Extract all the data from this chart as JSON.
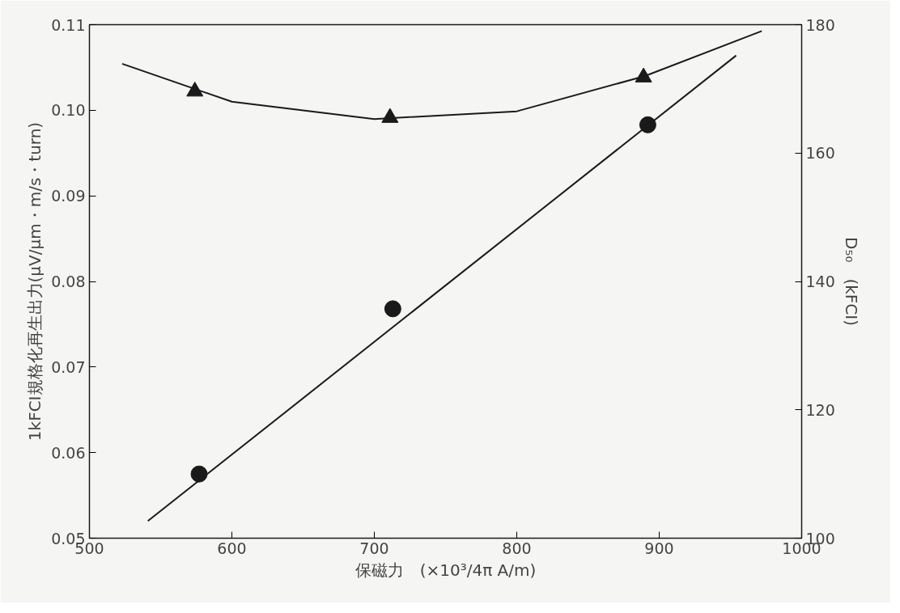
{
  "chart_data": {
    "type": "scatter",
    "xlabel": "保磁力　(×10³/4π A/m)",
    "ylabel": "1kFCI規格化再生出力(μV/μm・m/s・turn)",
    "y2label": "D₅₀　(kFCI)",
    "xlim": [
      500,
      1000
    ],
    "xticks": [
      500,
      600,
      700,
      800,
      900,
      1000
    ],
    "ylim": [
      0.05,
      0.11
    ],
    "yticks": [
      0.05,
      0.06,
      0.07,
      0.08,
      0.09,
      {
        "value": 0.1,
        "label": "0.10"
      },
      0.11
    ],
    "y2lim": [
      100,
      180
    ],
    "y2ticks": [
      100,
      120,
      140,
      160,
      180
    ],
    "grid": false,
    "series": [
      {
        "marker": "circle",
        "color": "#1a1a1a",
        "x": [
          577,
          713,
          892
        ],
        "values": [
          0.0575,
          0.0768,
          0.0983
        ]
      },
      {
        "type": "line",
        "line_style": "solid",
        "color": "#1a1a1a",
        "x": [
          541,
          954
        ],
        "values": [
          0.052,
          0.1064
        ]
      },
      {
        "marker": "triangle",
        "axis": "y2",
        "color": "#1a1a1a",
        "x": [
          574,
          711,
          889
        ],
        "values": [
          169.6,
          165.5,
          171.8
        ]
      },
      {
        "type": "line",
        "line_style": "solid",
        "axis": "y2",
        "color": "#1a1a1a",
        "x": [
          523,
          600,
          700,
          800,
          890,
          972
        ],
        "values": [
          173.9,
          168.0,
          165.3,
          166.5,
          172.0,
          179.0
        ]
      }
    ]
  }
}
